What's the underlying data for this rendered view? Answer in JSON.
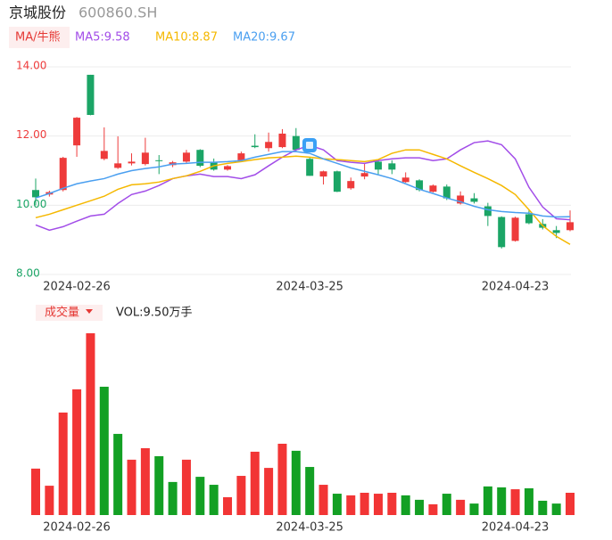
{
  "header": {
    "name": "京城股份",
    "code": "600860.SH",
    "ma_button": "MA/牛熊"
  },
  "chart_data": [
    {
      "type": "candlestick",
      "categories": [
        null,
        null,
        null,
        "2024-02-26",
        null,
        null,
        null,
        null,
        null,
        null,
        null,
        null,
        null,
        null,
        null,
        null,
        null,
        null,
        null,
        null,
        "2024-03-25",
        null,
        null,
        null,
        null,
        null,
        null,
        null,
        null,
        null,
        null,
        null,
        null,
        null,
        null,
        "2024-04-23",
        null,
        null,
        null,
        null
      ],
      "open": [
        10.44,
        10.31,
        10.44,
        11.73,
        13.77,
        11.34,
        11.08,
        11.21,
        11.19,
        11.3,
        11.16,
        11.26,
        11.6,
        11.24,
        11.03,
        11.3,
        11.72,
        11.65,
        11.68,
        12.0,
        11.34,
        10.83,
        10.98,
        10.49,
        10.83,
        11.26,
        11.21,
        10.67,
        10.72,
        10.39,
        10.54,
        10.05,
        10.2,
        9.97,
        9.66,
        8.97,
        9.74,
        9.46,
        9.28,
        9.28
      ],
      "high": [
        10.77,
        10.42,
        11.4,
        12.55,
        13.77,
        12.25,
        11.99,
        11.5,
        11.95,
        11.45,
        11.28,
        11.6,
        11.62,
        11.35,
        11.16,
        11.55,
        12.05,
        12.1,
        12.2,
        12.23,
        11.4,
        11.0,
        11.0,
        10.8,
        11.2,
        11.3,
        11.3,
        10.95,
        10.75,
        10.6,
        10.6,
        10.4,
        10.35,
        10.07,
        9.68,
        9.67,
        9.85,
        9.6,
        9.4,
        9.85
      ],
      "low": [
        10.0,
        10.25,
        10.4,
        11.4,
        12.6,
        11.3,
        11.05,
        11.15,
        11.15,
        10.9,
        11.1,
        11.2,
        11.1,
        11.0,
        11.0,
        11.28,
        11.65,
        11.55,
        11.65,
        11.55,
        10.85,
        10.6,
        10.38,
        10.45,
        10.75,
        10.9,
        10.9,
        10.65,
        10.4,
        10.37,
        10.15,
        10.02,
        10.05,
        9.4,
        8.75,
        8.95,
        9.45,
        9.3,
        9.05,
        9.25
      ],
      "close": [
        10.23,
        10.38,
        11.37,
        12.53,
        12.61,
        11.57,
        11.21,
        11.26,
        11.52,
        11.28,
        11.24,
        11.52,
        11.14,
        11.03,
        11.13,
        11.5,
        11.68,
        11.83,
        12.07,
        11.6,
        10.85,
        10.98,
        10.39,
        10.7,
        10.93,
        11.03,
        11.03,
        10.8,
        10.44,
        10.57,
        10.2,
        10.28,
        10.1,
        9.69,
        8.79,
        9.64,
        9.48,
        9.35,
        9.2,
        9.51
      ],
      "up_color": "#ee3b3b",
      "down_color": "#1ba566",
      "series": [
        {
          "name": "MA5:9.58",
          "color": "#a24de8",
          "values": [
            9.43,
            9.28,
            9.38,
            9.54,
            9.69,
            9.74,
            10.05,
            10.31,
            10.41,
            10.57,
            10.77,
            10.85,
            10.9,
            10.83,
            10.83,
            10.77,
            10.88,
            11.14,
            11.39,
            11.6,
            11.73,
            11.6,
            11.29,
            11.24,
            11.21,
            11.29,
            11.34,
            11.37,
            11.37,
            11.29,
            11.34,
            11.6,
            11.81,
            11.86,
            11.75,
            11.34,
            10.52,
            9.95,
            9.61,
            9.58
          ]
        },
        {
          "name": "MA10:8.87",
          "color": "#f5b800",
          "values": [
            9.64,
            9.74,
            9.87,
            10.0,
            10.13,
            10.26,
            10.46,
            10.59,
            10.62,
            10.67,
            10.77,
            10.85,
            10.98,
            11.14,
            11.21,
            11.26,
            11.32,
            11.37,
            11.39,
            11.42,
            11.39,
            11.34,
            11.32,
            11.29,
            11.26,
            11.32,
            11.5,
            11.6,
            11.6,
            11.47,
            11.34,
            11.14,
            10.95,
            10.77,
            10.57,
            10.31,
            9.87,
            9.41,
            9.1,
            8.87
          ]
        },
        {
          "name": "MA20:9.67",
          "color": "#4a9ff0",
          "values": [
            10.21,
            10.34,
            10.49,
            10.62,
            10.7,
            10.77,
            10.9,
            11.0,
            11.06,
            11.11,
            11.19,
            11.21,
            11.24,
            11.24,
            11.26,
            11.29,
            11.39,
            11.47,
            11.55,
            11.55,
            11.5,
            11.34,
            11.21,
            11.08,
            10.98,
            10.88,
            10.77,
            10.62,
            10.46,
            10.34,
            10.21,
            10.1,
            9.97,
            9.87,
            9.82,
            9.79,
            9.77,
            9.69,
            9.66,
            9.67
          ]
        }
      ],
      "ylim": [
        8,
        14
      ],
      "yticks": [
        {
          "value": 8,
          "label": "8.00"
        },
        {
          "value": 10,
          "label": "10.00"
        },
        {
          "value": 12,
          "label": "12.00"
        },
        {
          "value": 14,
          "label": "14.00"
        }
      ],
      "ytick_colors": [
        "#1ba566",
        "#1ba566",
        "#ee3b3b",
        "#ee3b3b"
      ],
      "grid": true
    },
    {
      "type": "bar",
      "button": "成交量",
      "label": "VOL:9.50万手",
      "categories": [
        null,
        null,
        null,
        "2024-02-26",
        null,
        null,
        null,
        null,
        null,
        null,
        null,
        null,
        null,
        null,
        null,
        null,
        null,
        null,
        null,
        null,
        "2024-03-25",
        null,
        null,
        null,
        null,
        null,
        null,
        null,
        null,
        null,
        null,
        null,
        null,
        null,
        null,
        "2024-04-23",
        null,
        null,
        null,
        null
      ],
      "values": [
        19.8,
        12.5,
        43.7,
        53.6,
        77.5,
        54.7,
        34.6,
        23.6,
        28.5,
        25.1,
        14.1,
        23.6,
        16.3,
        12.9,
        7.6,
        16.7,
        27.0,
        20.1,
        30.4,
        27.4,
        20.5,
        12.9,
        9.1,
        8.4,
        9.5,
        9.1,
        9.5,
        8.4,
        6.5,
        4.6,
        9.1,
        6.5,
        4.9,
        12.2,
        11.8,
        11.0,
        11.4,
        6.1,
        4.9,
        9.5
      ],
      "colors": [
        "#f23535",
        "#f23535",
        "#f23535",
        "#f23535",
        "#f23535",
        "#13a024",
        "#13a024",
        "#f23535",
        "#f23535",
        "#13a024",
        "#13a024",
        "#f23535",
        "#13a024",
        "#13a024",
        "#f23535",
        "#f23535",
        "#f23535",
        "#f23535",
        "#f23535",
        "#13a024",
        "#13a024",
        "#f23535",
        "#13a024",
        "#f23535",
        "#f23535",
        "#f23535",
        "#f23535",
        "#13a024",
        "#13a024",
        "#f23535",
        "#13a024",
        "#f23535",
        "#13a024",
        "#13a024",
        "#13a024",
        "#f23535",
        "#13a024",
        "#13a024",
        "#13a024",
        "#f23535"
      ],
      "ylim": [
        0,
        77.5
      ]
    }
  ]
}
